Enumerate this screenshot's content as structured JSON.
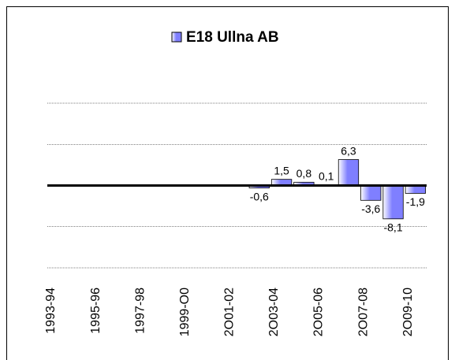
{
  "chart_data": {
    "type": "bar",
    "categories": [
      "1993-94",
      null,
      "1995-96",
      null,
      "1997-98",
      null,
      "1999-O0",
      null,
      "2O01-02",
      null,
      "2O03-04",
      null,
      "2O05-06",
      null,
      "2O07-08",
      null,
      "2O09-10"
    ],
    "series": [
      {
        "name": "E18 Ullna AB",
        "color": "#7f7fff",
        "values": [
          null,
          null,
          null,
          null,
          null,
          null,
          null,
          null,
          null,
          -0.6,
          1.5,
          0.8,
          0.1,
          6.3,
          -3.6,
          -8.1,
          -1.9
        ],
        "value_labels": [
          null,
          null,
          null,
          null,
          null,
          null,
          null,
          null,
          null,
          "-0,6",
          "1,5",
          "0,8",
          "0,1",
          "6,3",
          "-3,6",
          "-8,1",
          "-1,9"
        ]
      }
    ],
    "ylim": [
      -20,
      20
    ],
    "yticks": [
      -20,
      -10,
      0,
      10,
      20
    ],
    "grid": true,
    "legend": "top"
  }
}
